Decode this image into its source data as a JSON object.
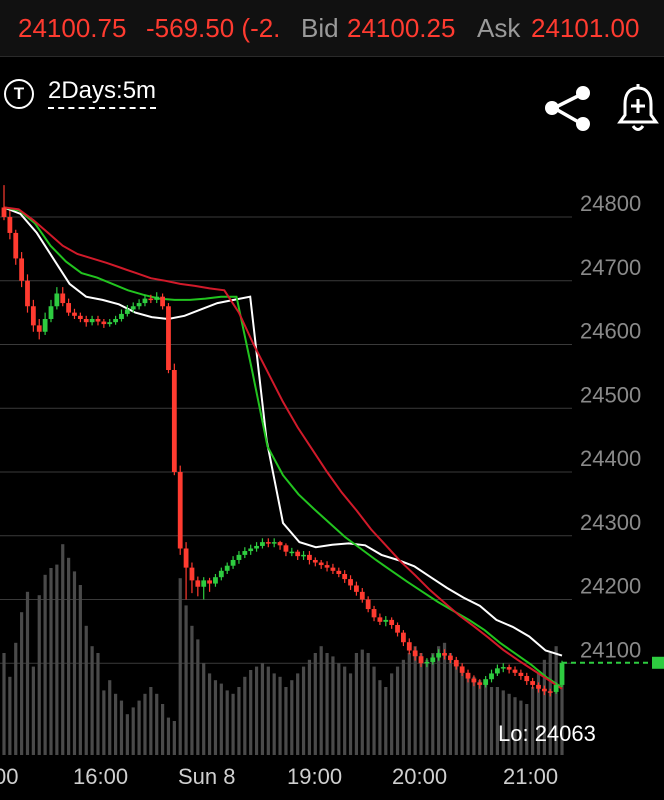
{
  "quote": {
    "last": "24100.75",
    "change": "-569.50 (-2.",
    "bid_label": "Bid",
    "bid": "24100.25",
    "ask_label": "Ask",
    "ask": "24101.00"
  },
  "toolbar": {
    "type_icon_letter": "T",
    "interval": "2Days:5m"
  },
  "icons": [
    "share-icon",
    "bell-plus-icon"
  ],
  "colors": {
    "up": "#2ecc40",
    "down": "#ff3b30",
    "ma_fast": "#ffffff",
    "ma_mid": "#22c41f",
    "ma_slow": "#d11a2a",
    "volume": "#4a4a4a",
    "grid": "#3a3a3a",
    "last_price_line": "#2ecc40"
  },
  "chart_data": {
    "type": "line",
    "title": "",
    "xlabel": "",
    "ylabel": "",
    "ylim": [
      24000,
      24850
    ],
    "y_ticks": [
      "24800",
      "24700",
      "24600",
      "24500",
      "24400",
      "24300",
      "24200",
      "24100"
    ],
    "x_ticks": [
      "00",
      "16:00",
      "Sun 8",
      "19:00",
      "20:00",
      "21:00"
    ],
    "low_label": "Lo: 24063",
    "last_price": 24100.75,
    "candle_count": 96,
    "moving_averages": [
      {
        "key": "ma_fast",
        "values": [
          24815,
          24805,
          24775,
          24735,
          24695,
          24675,
          24670,
          24663,
          24650,
          24643,
          24640,
          24645,
          24655,
          24665,
          24670,
          24675,
          24450,
          24320,
          24290,
          24282,
          24286,
          24288,
          24285,
          24270,
          24262,
          24252,
          24235,
          24218,
          24203,
          24190,
          24168,
          24157,
          24142,
          24120,
          24112
        ]
      },
      {
        "key": "ma_mid",
        "values": [
          24815,
          24810,
          24790,
          24755,
          24730,
          24712,
          24705,
          24695,
          24685,
          24678,
          24672,
          24670,
          24670,
          24672,
          24675,
          24675,
          24560,
          24440,
          24395,
          24365,
          24342,
          24320,
          24298,
          24280,
          24262,
          24245,
          24228,
          24212,
          24196,
          24182,
          24168,
          24152,
          24132,
          24115,
          24098,
          24078,
          24062
        ]
      },
      {
        "key": "ma_slow",
        "values": [
          24815,
          24812,
          24795,
          24775,
          24755,
          24742,
          24735,
          24728,
          24720,
          24712,
          24704,
          24700,
          24695,
          24692,
          24688,
          24685,
          24650,
          24600,
          24555,
          24510,
          24470,
          24435,
          24400,
          24368,
          24340,
          24310,
          24285,
          24260,
          24238,
          24215,
          24195,
          24175,
          24158,
          24140,
          24121,
          24105,
          24090,
          24075,
          24060
        ]
      }
    ],
    "candles": {
      "open": [
        24815,
        24800,
        24775,
        24735,
        24700,
        24660,
        24630,
        24620,
        24640,
        24660,
        24680,
        24665,
        24650,
        24645,
        24640,
        24635,
        24640,
        24636,
        24632,
        24635,
        24640,
        24648,
        24655,
        24660,
        24665,
        24672,
        24670,
        24675,
        24660,
        24560,
        24400,
        24280,
        24250,
        24230,
        24220,
        24230,
        24225,
        24235,
        24245,
        24253,
        24262,
        24270,
        24276,
        24280,
        24284,
        24290,
        24288,
        24290,
        24285,
        24275,
        24275,
        24268,
        24270,
        24262,
        24258,
        24254,
        24250,
        24245,
        24240,
        24232,
        24222,
        24212,
        24200,
        24185,
        24172,
        24165,
        24168,
        24160,
        24148,
        24133,
        24120,
        24111,
        24100,
        24102,
        24109,
        24116,
        24112,
        24105,
        24095,
        24085,
        24076,
        24070,
        24066,
        24075,
        24084,
        24092,
        24094,
        24090,
        24085,
        24080,
        24072,
        24066,
        24060,
        24056,
        24055,
        24066
      ],
      "close": [
        24800,
        24775,
        24735,
        24700,
        24660,
        24630,
        24620,
        24640,
        24660,
        24680,
        24665,
        24650,
        24645,
        24640,
        24635,
        24640,
        24636,
        24632,
        24635,
        24640,
        24648,
        24655,
        24660,
        24665,
        24672,
        24670,
        24675,
        24660,
        24560,
        24400,
        24280,
        24250,
        24230,
        24220,
        24230,
        24225,
        24235,
        24245,
        24253,
        24262,
        24270,
        24276,
        24280,
        24284,
        24290,
        24288,
        24290,
        24285,
        24275,
        24275,
        24268,
        24270,
        24262,
        24258,
        24254,
        24250,
        24245,
        24240,
        24232,
        24222,
        24212,
        24200,
        24185,
        24172,
        24165,
        24168,
        24160,
        24148,
        24133,
        24120,
        24111,
        24100,
        24102,
        24109,
        24116,
        24112,
        24105,
        24095,
        24085,
        24076,
        24070,
        24066,
        24075,
        24084,
        24092,
        24094,
        24090,
        24085,
        24080,
        24072,
        24066,
        24060,
        24056,
        24055,
        24066,
        24100.75
      ],
      "high": [
        24850,
        24810,
        24780,
        24745,
        24710,
        24670,
        24640,
        24650,
        24670,
        24690,
        24690,
        24672,
        24656,
        24650,
        24645,
        24645,
        24645,
        24640,
        24640,
        24645,
        24655,
        24662,
        24666,
        24671,
        24678,
        24678,
        24682,
        24680,
        24665,
        24570,
        24410,
        24290,
        24258,
        24236,
        24235,
        24234,
        24240,
        24250,
        24258,
        24268,
        24276,
        24282,
        24286,
        24290,
        24296,
        24296,
        24296,
        24292,
        24288,
        24281,
        24278,
        24276,
        24276,
        24266,
        24262,
        24260,
        24256,
        24250,
        24246,
        24238,
        24228,
        24218,
        24205,
        24190,
        24178,
        24174,
        24172,
        24164,
        24152,
        24139,
        24126,
        24116,
        24108,
        24114,
        24122,
        24122,
        24116,
        24110,
        24100,
        24090,
        24081,
        24075,
        24080,
        24090,
        24098,
        24100,
        24098,
        24095,
        24090,
        24085,
        24077,
        24070,
        24065,
        24060,
        24070,
        24104
      ],
      "low": [
        24795,
        24765,
        24725,
        24690,
        24650,
        24620,
        24608,
        24615,
        24635,
        24655,
        24660,
        24645,
        24640,
        24635,
        24628,
        24630,
        24630,
        24626,
        24628,
        24631,
        24636,
        24644,
        24650,
        24655,
        24660,
        24665,
        24665,
        24655,
        24555,
        24395,
        24270,
        24200,
        24210,
        24205,
        24200,
        24212,
        24220,
        24230,
        24240,
        24248,
        24256,
        24265,
        24270,
        24275,
        24280,
        24282,
        24282,
        24278,
        24268,
        24268,
        24262,
        24262,
        24255,
        24252,
        24248,
        24244,
        24240,
        24235,
        24226,
        24215,
        24206,
        24195,
        24180,
        24166,
        24160,
        24158,
        24154,
        24142,
        24127,
        24114,
        24104,
        24094,
        24094,
        24098,
        24104,
        24106,
        24100,
        24090,
        24080,
        24070,
        24064,
        24060,
        24062,
        24070,
        24080,
        24086,
        24084,
        24080,
        24074,
        24066,
        24060,
        24054,
        24050,
        24048,
        24052,
        24063
      ]
    },
    "volume": {
      "max": 1000,
      "values": [
        300,
        230,
        330,
        420,
        480,
        260,
        470,
        530,
        550,
        560,
        620,
        580,
        540,
        500,
        380,
        320,
        300,
        190,
        220,
        180,
        160,
        120,
        140,
        160,
        180,
        200,
        180,
        150,
        110,
        100,
        520,
        440,
        380,
        340,
        270,
        240,
        220,
        210,
        190,
        180,
        200,
        230,
        250,
        260,
        270,
        260,
        240,
        230,
        200,
        220,
        240,
        260,
        280,
        300,
        320,
        300,
        290,
        270,
        260,
        240,
        300,
        310,
        300,
        260,
        220,
        200,
        240,
        260,
        280,
        300,
        320,
        300,
        280,
        300,
        320,
        330,
        300,
        280,
        250,
        240,
        230,
        220,
        210,
        200,
        200,
        190,
        180,
        170,
        160,
        150,
        200,
        240,
        280,
        300,
        320,
        210
      ]
    }
  }
}
